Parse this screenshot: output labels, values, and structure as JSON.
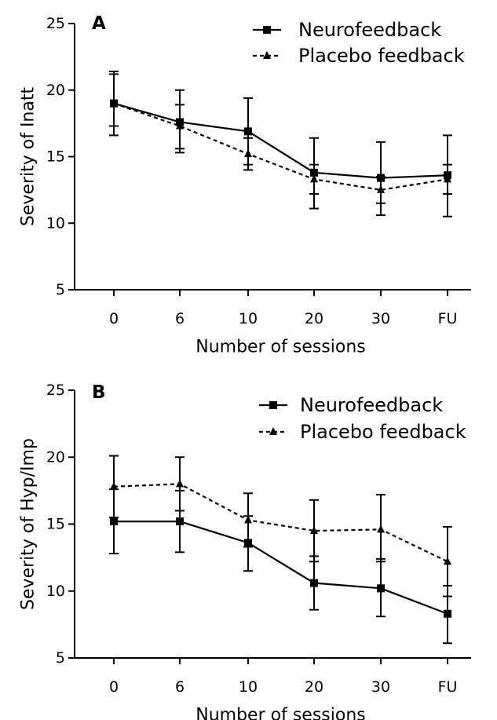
{
  "chart_data": [
    {
      "type": "line",
      "panel_label": "A",
      "title": "",
      "xlabel": "Number of sessions",
      "ylabel": "Severity of Inatt",
      "categories": [
        "0",
        "6",
        "10",
        "20",
        "30",
        "FU"
      ],
      "ylim": [
        5,
        25
      ],
      "yticks": [
        5,
        10,
        15,
        20,
        25
      ],
      "grid": false,
      "legend_position": "top-right",
      "series": [
        {
          "name": "Neurofeedback",
          "style": "solid",
          "marker": "square",
          "color": "#000000",
          "values": [
            19.0,
            17.6,
            16.9,
            13.8,
            13.4,
            13.6
          ],
          "err_plus": [
            2.4,
            2.4,
            2.5,
            2.6,
            2.7,
            3.0
          ],
          "err_minus": [
            2.4,
            2.3,
            2.5,
            2.7,
            2.8,
            3.1
          ]
        },
        {
          "name": "Placebo feedback",
          "style": "dashed",
          "marker": "triangle",
          "color": "#000000",
          "values": [
            19.0,
            17.3,
            15.2,
            13.3,
            12.5,
            13.3
          ],
          "err_plus": [
            2.2,
            1.6,
            1.2,
            1.1,
            1.0,
            1.1
          ],
          "err_minus": [
            1.7,
            1.7,
            1.2,
            1.1,
            1.0,
            1.1
          ]
        }
      ]
    },
    {
      "type": "line",
      "panel_label": "B",
      "title": "",
      "xlabel": "Number of sessions",
      "ylabel": "Severity of Hyp/Imp",
      "categories": [
        "0",
        "6",
        "10",
        "20",
        "30",
        "FU"
      ],
      "ylim": [
        5,
        25
      ],
      "yticks": [
        5,
        10,
        15,
        20,
        25
      ],
      "grid": false,
      "legend_position": "top-right",
      "series": [
        {
          "name": "Neurofeedback",
          "style": "solid",
          "marker": "square",
          "color": "#000000",
          "values": [
            15.2,
            15.2,
            13.6,
            10.6,
            10.2,
            8.3
          ],
          "err_plus": [
            2.4,
            2.3,
            2.0,
            2.0,
            2.2,
            2.1
          ],
          "err_minus": [
            2.4,
            2.3,
            2.1,
            2.0,
            2.1,
            2.2
          ]
        },
        {
          "name": "Placebo feedback",
          "style": "dashed",
          "marker": "triangle",
          "color": "#000000",
          "values": [
            17.8,
            18.0,
            15.3,
            14.5,
            14.6,
            12.2
          ],
          "err_plus": [
            2.3,
            2.0,
            2.0,
            2.3,
            2.6,
            2.6
          ],
          "err_minus": [
            2.3,
            2.0,
            2.0,
            2.3,
            2.4,
            2.6
          ]
        }
      ]
    }
  ]
}
